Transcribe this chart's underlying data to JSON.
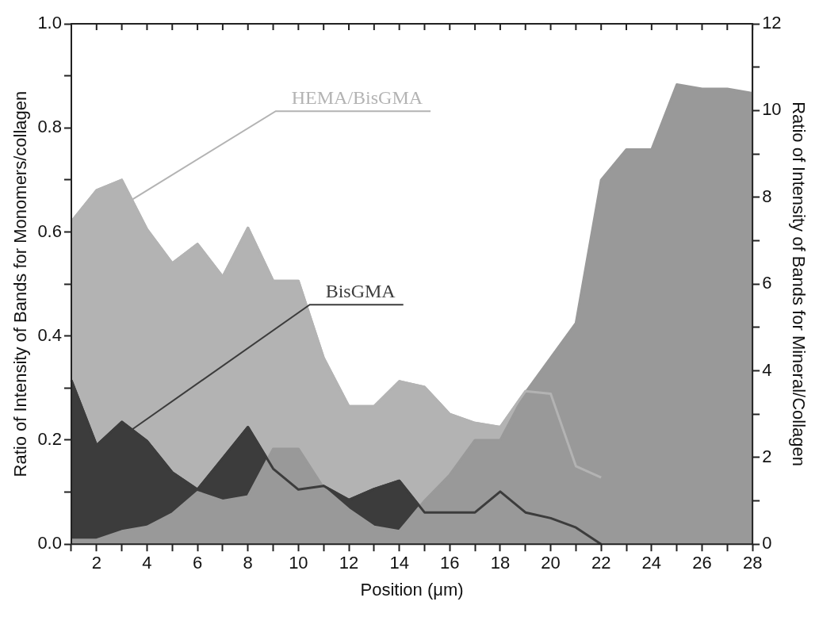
{
  "chart_data": {
    "type": "area",
    "xlabel": "Position (μm)",
    "ylabel": "Ratio of Intensity of Bands for Monomers/collagen",
    "y2label": "Ratio of Intensity of Bands for Mineral/Collagen",
    "x": [
      1,
      2,
      3,
      4,
      5,
      6,
      7,
      8,
      9,
      10,
      11,
      12,
      13,
      14,
      15,
      16,
      17,
      18,
      19,
      20,
      21,
      22,
      23,
      24,
      25,
      26,
      27,
      28
    ],
    "series": [
      {
        "name": "HEMA/BisGMA",
        "color": "#b3b3b3",
        "x": [
          1,
          2,
          3,
          4,
          5,
          6,
          7,
          8,
          9,
          10,
          11,
          12,
          13,
          14,
          15,
          16,
          17,
          18,
          19,
          20,
          21,
          22
        ],
        "values": [
          0.62,
          0.68,
          0.7,
          0.605,
          0.54,
          0.577,
          0.514,
          0.608,
          0.506,
          0.506,
          0.358,
          0.265,
          0.265,
          0.313,
          0.302,
          0.25,
          0.233,
          0.225,
          0.294,
          0.289,
          0.15,
          0.128
        ]
      },
      {
        "name": "BisGMA",
        "color": "#3c3c3c",
        "x": [
          1,
          2,
          3,
          4,
          5,
          6,
          7,
          8,
          9,
          10,
          11,
          12,
          13,
          14,
          15,
          16,
          17,
          18,
          19,
          20,
          21,
          22
        ],
        "values": [
          0.315,
          0.19,
          0.235,
          0.198,
          0.138,
          0.105,
          0.165,
          0.225,
          0.145,
          0.105,
          0.112,
          0.085,
          0.106,
          0.122,
          0.061,
          0.061,
          0.061,
          0.101,
          0.061,
          0.05,
          0.032,
          0
        ]
      },
      {
        "color": "#999999",
        "axis": "y2",
        "values": [
          0.1,
          0.1,
          0.3,
          0.4,
          0.7,
          1.2,
          1.0,
          1.1,
          2.2,
          2.2,
          1.3,
          0.8,
          0.4,
          0.3,
          1.0,
          1.6,
          2.4,
          2.4,
          3.5,
          4.3,
          5.1,
          8.4,
          9.1,
          9.1,
          10.6,
          10.5,
          10.5,
          10.4
        ]
      }
    ],
    "xlim": [
      1,
      28
    ],
    "xticks": [
      {
        "value": 1,
        "label": null
      },
      2,
      {
        "value": 3,
        "label": null
      },
      4,
      {
        "value": 5,
        "label": null
      },
      6,
      {
        "value": 7,
        "label": null
      },
      8,
      {
        "value": 9,
        "label": null
      },
      10,
      {
        "value": 11,
        "label": null
      },
      12,
      {
        "value": 13,
        "label": null
      },
      14,
      {
        "value": 15,
        "label": null
      },
      16,
      {
        "value": 17,
        "label": null
      },
      18,
      {
        "value": 19,
        "label": null
      },
      20,
      {
        "value": 21,
        "label": null
      },
      22,
      {
        "value": 23,
        "label": null
      },
      24,
      {
        "value": 25,
        "label": null
      },
      26,
      {
        "value": 27,
        "label": null
      },
      28
    ],
    "ylim": [
      0,
      1
    ],
    "yticks": [
      {
        "value": 0,
        "label": "0.0"
      },
      {
        "value": 0.1,
        "label": null
      },
      {
        "value": 0.2,
        "label": "0.2"
      },
      {
        "value": 0.3,
        "label": null
      },
      {
        "value": 0.4,
        "label": "0.4"
      },
      {
        "value": 0.5,
        "label": null
      },
      {
        "value": 0.6,
        "label": "0.6"
      },
      {
        "value": 0.7,
        "label": null
      },
      {
        "value": 0.8,
        "label": "0.8"
      },
      {
        "value": 0.9,
        "label": null
      },
      {
        "value": 1,
        "label": "1.0"
      }
    ],
    "y2lim": [
      0,
      12
    ],
    "y2ticks": [
      0,
      {
        "value": 1,
        "label": null
      },
      2,
      {
        "value": 3,
        "label": null
      },
      4,
      {
        "value": 5,
        "label": null
      },
      6,
      {
        "value": 7,
        "label": null
      },
      8,
      {
        "value": 9,
        "label": null
      },
      10,
      {
        "value": 11,
        "label": null
      },
      12
    ],
    "grid": false,
    "legend": false,
    "marker": "none",
    "line_style": "solid"
  }
}
